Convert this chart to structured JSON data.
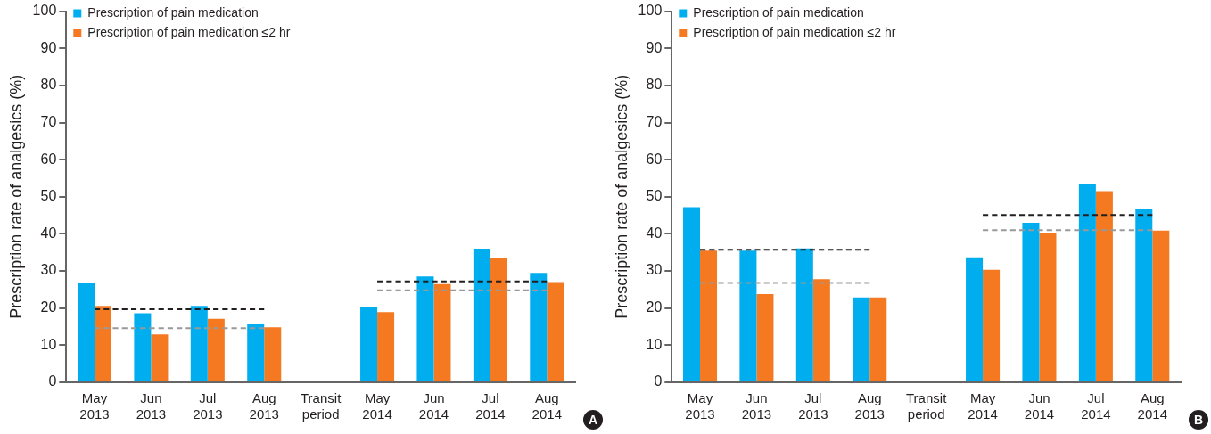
{
  "chart_data": [
    {
      "type": "bar",
      "categories": [
        "May 2013",
        "Jun 2013",
        "Jul 2013",
        "Aug 2013",
        "Transit period",
        "May 2014",
        "Jun 2014",
        "Jul 2014",
        "Aug 2014"
      ],
      "ylabel": "Prescription rate of analgesics (%)",
      "ylim": [
        0,
        100
      ],
      "yticks": [
        0,
        10,
        20,
        30,
        40,
        50,
        60,
        70,
        80,
        90,
        100
      ],
      "grid": false,
      "legend": "top left",
      "annotations": [
        "A"
      ],
      "series": [
        {
          "name": "Prescription of pain medication",
          "color": "#00aeef",
          "values": [
            26.7,
            18.6,
            20.6,
            15.6,
            null,
            20.3,
            28.5,
            36.0,
            29.5
          ]
        },
        {
          "name": "Prescription of pain medication ≤2 hr",
          "color": "#f47920",
          "values": [
            20.6,
            12.9,
            17.1,
            14.8,
            null,
            18.9,
            26.5,
            33.5,
            27.0
          ]
        },
        {
          "type": "line",
          "color": "#231f20",
          "line_style": "dashed",
          "marker": "none",
          "values": [
            19.7,
            19.7,
            19.7,
            19.7,
            null,
            null,
            null,
            null,
            null
          ]
        },
        {
          "type": "line",
          "color": "#999999",
          "line_style": "dashed",
          "marker": "none",
          "values": [
            14.6,
            14.6,
            14.6,
            14.6,
            null,
            null,
            null,
            null,
            null
          ]
        },
        {
          "type": "line",
          "color": "#231f20",
          "line_style": "dashed",
          "marker": "none",
          "values": [
            null,
            null,
            null,
            null,
            null,
            27.2,
            27.2,
            27.2,
            27.2
          ]
        },
        {
          "type": "line",
          "color": "#999999",
          "line_style": "dashed",
          "marker": "none",
          "values": [
            null,
            null,
            null,
            null,
            null,
            24.8,
            24.8,
            24.8,
            24.8
          ]
        }
      ]
    },
    {
      "type": "bar",
      "categories": [
        "May 2013",
        "Jun 2013",
        "Jul 2013",
        "Aug 2013",
        "Transit period",
        "May 2014",
        "Jun 2014",
        "Jul 2014",
        "Aug 2014"
      ],
      "ylabel": "Prescription rate of analgesics (%)",
      "ylim": [
        0,
        100
      ],
      "yticks": [
        0,
        10,
        20,
        30,
        40,
        50,
        60,
        70,
        80,
        90,
        100
      ],
      "grid": false,
      "legend": "top left",
      "annotations": [
        "B"
      ],
      "series": [
        {
          "name": "Prescription of pain medication",
          "color": "#00aeef",
          "values": [
            47.2,
            35.5,
            36.1,
            22.9,
            null,
            33.7,
            43.0,
            53.3,
            46.6
          ]
        },
        {
          "name": "Prescription of pain medication ≤2 hr",
          "color": "#f47920",
          "values": [
            35.5,
            23.8,
            27.8,
            22.9,
            null,
            30.3,
            40.1,
            51.5,
            40.9
          ]
        },
        {
          "type": "line",
          "color": "#231f20",
          "line_style": "dashed",
          "marker": "none",
          "values": [
            35.7,
            35.7,
            35.7,
            35.7,
            null,
            null,
            null,
            null,
            null
          ]
        },
        {
          "type": "line",
          "color": "#999999",
          "line_style": "dashed",
          "marker": "none",
          "values": [
            26.8,
            26.8,
            26.8,
            26.8,
            null,
            null,
            null,
            null,
            null
          ]
        },
        {
          "type": "line",
          "color": "#231f20",
          "line_style": "dashed",
          "marker": "none",
          "values": [
            null,
            null,
            null,
            null,
            null,
            45.1,
            45.1,
            45.1,
            45.1
          ]
        },
        {
          "type": "line",
          "color": "#999999",
          "line_style": "dashed",
          "marker": "none",
          "values": [
            null,
            null,
            null,
            null,
            null,
            41.0,
            41.0,
            41.0,
            41.0
          ]
        }
      ]
    }
  ]
}
